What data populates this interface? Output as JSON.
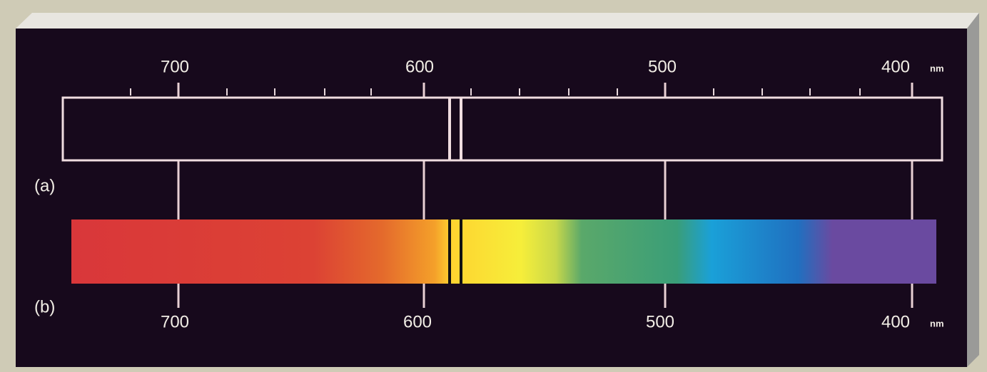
{
  "top_scale": {
    "labels": [
      "700",
      "600",
      "500",
      "400"
    ],
    "unit": "nm"
  },
  "bottom_scale": {
    "labels": [
      "700",
      "600",
      "500",
      "400"
    ],
    "unit": "nm"
  },
  "panels": {
    "a": "(a)",
    "b": "(b)"
  }
}
